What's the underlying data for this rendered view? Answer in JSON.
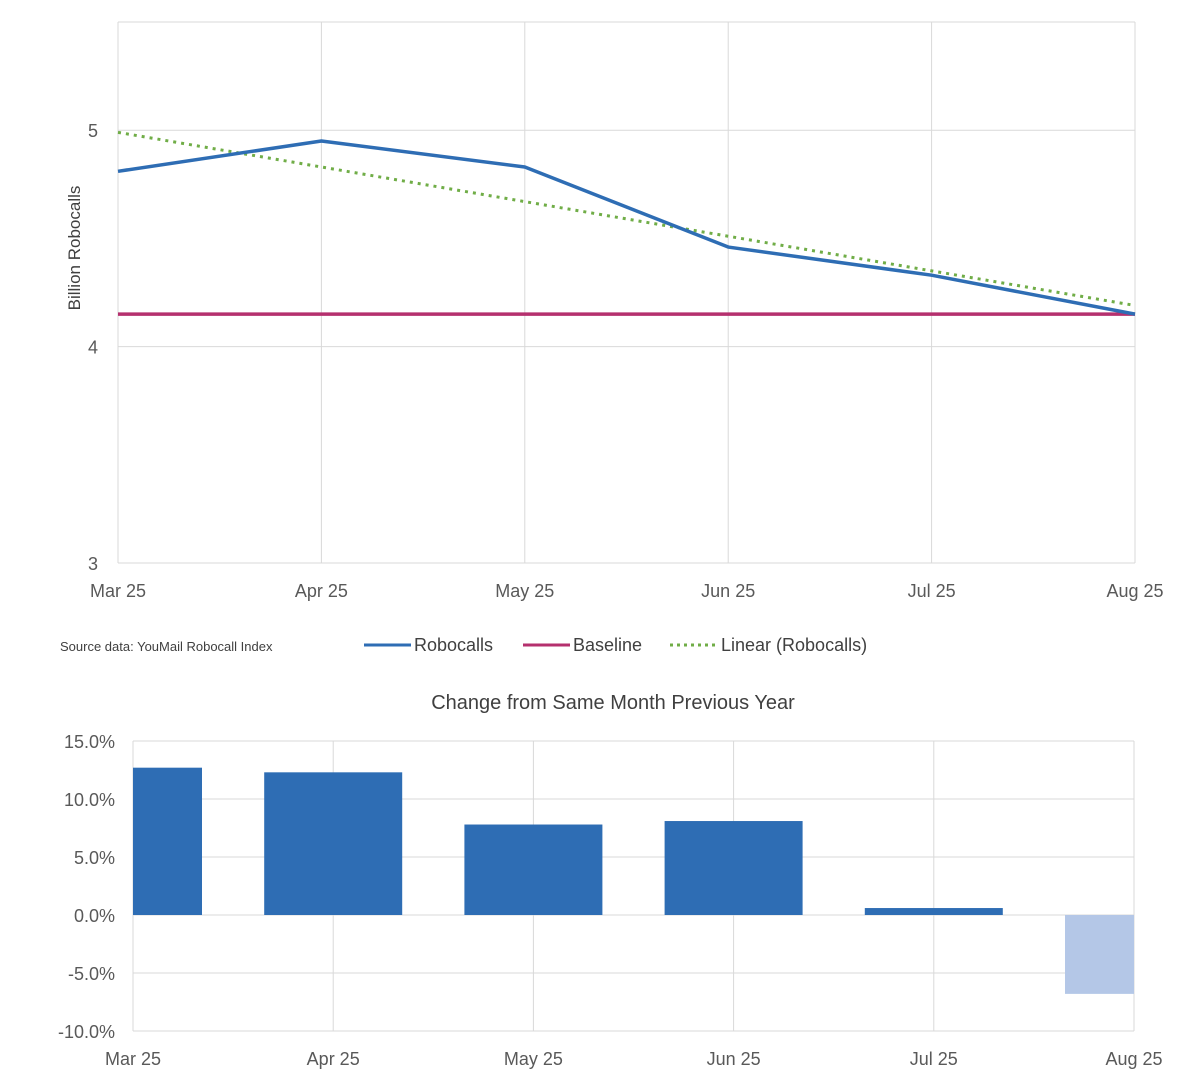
{
  "chart_data": [
    {
      "type": "line",
      "categories": [
        "Mar 25",
        "Apr 25",
        "May 25",
        "Jun 25",
        "Jul 25",
        "Aug 25"
      ],
      "ylabel": "Billion Robocalls",
      "ylim": [
        3,
        5.5
      ],
      "yticks": [
        "3",
        "4",
        "5"
      ],
      "grid": true,
      "legend_position": "bottom",
      "series": [
        {
          "name": "Robocalls",
          "values": [
            4.81,
            4.95,
            4.83,
            4.46,
            4.33,
            4.15
          ],
          "color": "#2E6DB4",
          "style": "solid"
        },
        {
          "name": "Baseline",
          "values": [
            4.15,
            4.15,
            4.15,
            4.15,
            4.15,
            4.15
          ],
          "color": "#B5306E",
          "style": "solid"
        },
        {
          "name": "Linear (Robocalls)",
          "values": [
            4.99,
            4.83,
            4.67,
            4.51,
            4.35,
            4.19
          ],
          "color": "#70AD47",
          "style": "dotted"
        }
      ],
      "source": "Source data: YouMail Robocall Index"
    },
    {
      "type": "bar",
      "title": "Change from Same Month Previous Year",
      "categories": [
        "Mar 25",
        "Apr 25",
        "May 25",
        "Jun 25",
        "Jul 25",
        "Aug 25"
      ],
      "values": [
        12.7,
        12.3,
        7.8,
        8.1,
        0.6,
        -6.8
      ],
      "ylim": [
        -10,
        15
      ],
      "yticks": [
        "-10.0%",
        "-5.0%",
        "0.0%",
        "5.0%",
        "10.0%",
        "15.0%"
      ],
      "grid": true,
      "colors": {
        "positive": "#2E6DB4",
        "negative": "#B4C7E7"
      }
    }
  ]
}
